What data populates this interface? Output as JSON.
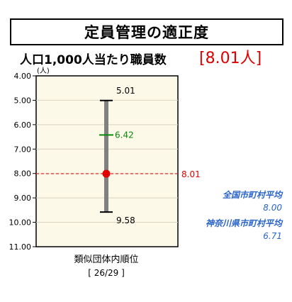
{
  "header": {
    "title": "定員管理の適正度",
    "subtitle": "人口1,000人当たり職員数",
    "value_display": "[8.01人]"
  },
  "chart_data": {
    "type": "range",
    "unit": "(人)",
    "y_axis": {
      "min": 4.0,
      "max": 11.0,
      "inverted": true,
      "ticks": [
        "4.00",
        "5.00",
        "6.00",
        "7.00",
        "8.00",
        "9.00",
        "10.00",
        "11.00"
      ]
    },
    "range": {
      "min": 5.01,
      "max": 9.58,
      "min_label": "5.01",
      "max_label": "9.58"
    },
    "average": {
      "value": 6.42,
      "label": "6.42"
    },
    "current": {
      "value": 8.01,
      "label": "8.01"
    },
    "xlabel": "類似団体内順位",
    "rank": "[ 26/29 ]",
    "colors": {
      "plot_bg": "#fdf9e8",
      "range_bar": "#808080",
      "average_tick": "#0a8a0a",
      "current": "#e00000",
      "legend_text": "#2a64c8"
    }
  },
  "legend": {
    "national_label": "全国市町村平均",
    "national_value": "8.00",
    "prefecture_label": "神奈川県市町村平均",
    "prefecture_value": "6.71"
  }
}
